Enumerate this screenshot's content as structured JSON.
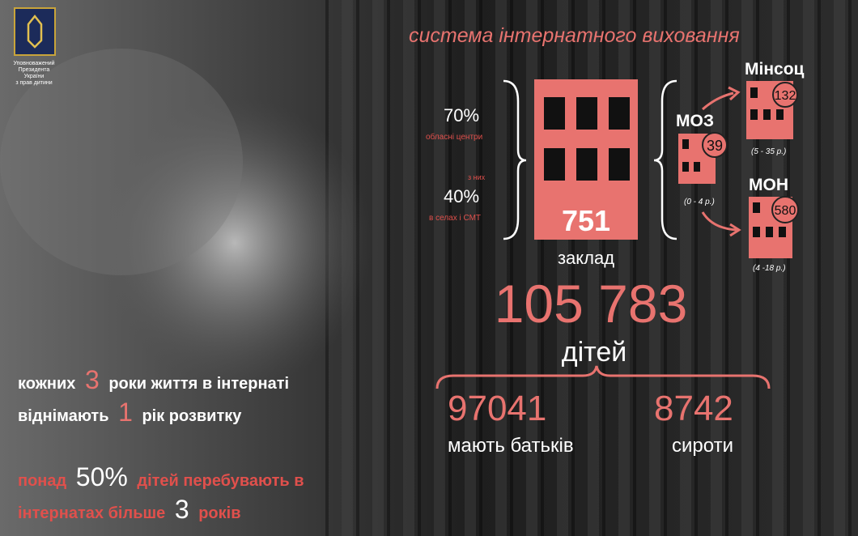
{
  "emblem": {
    "caption": [
      "Уповноважений",
      "Президента",
      "України",
      "з прав дитини"
    ]
  },
  "title": "система інтернатного виховання",
  "regional": {
    "share": "70%",
    "share_label": "обласні центри",
    "subset_label": "з них",
    "sub_share": "40%",
    "sub_label": "в селах і СМТ"
  },
  "institutions": {
    "count": "751",
    "label": "заклад"
  },
  "ministries": [
    {
      "name": "МОЗ",
      "count": "39",
      "ages": "(0 - 4 р.)"
    },
    {
      "name": "Мінсоц",
      "count": "132",
      "ages": "(5 - 35 р.)"
    },
    {
      "name": "МОН",
      "count": "580",
      "ages": "(4 -18 р.)"
    }
  ],
  "children": {
    "total": "105 783",
    "label": "дітей",
    "with_parents": "97041",
    "with_parents_label": "мають батьків",
    "orphans": "8742",
    "orphans_label": "сироти"
  },
  "facts": [
    [
      "кожних",
      "3",
      "роки життя в інтернаті"
    ],
    [
      "віднімають",
      "1",
      "рік розвитку"
    ],
    [
      "понад",
      "50%",
      "дітей перебувають в"
    ],
    [
      "інтернатах більше",
      "3",
      "років"
    ]
  ]
}
